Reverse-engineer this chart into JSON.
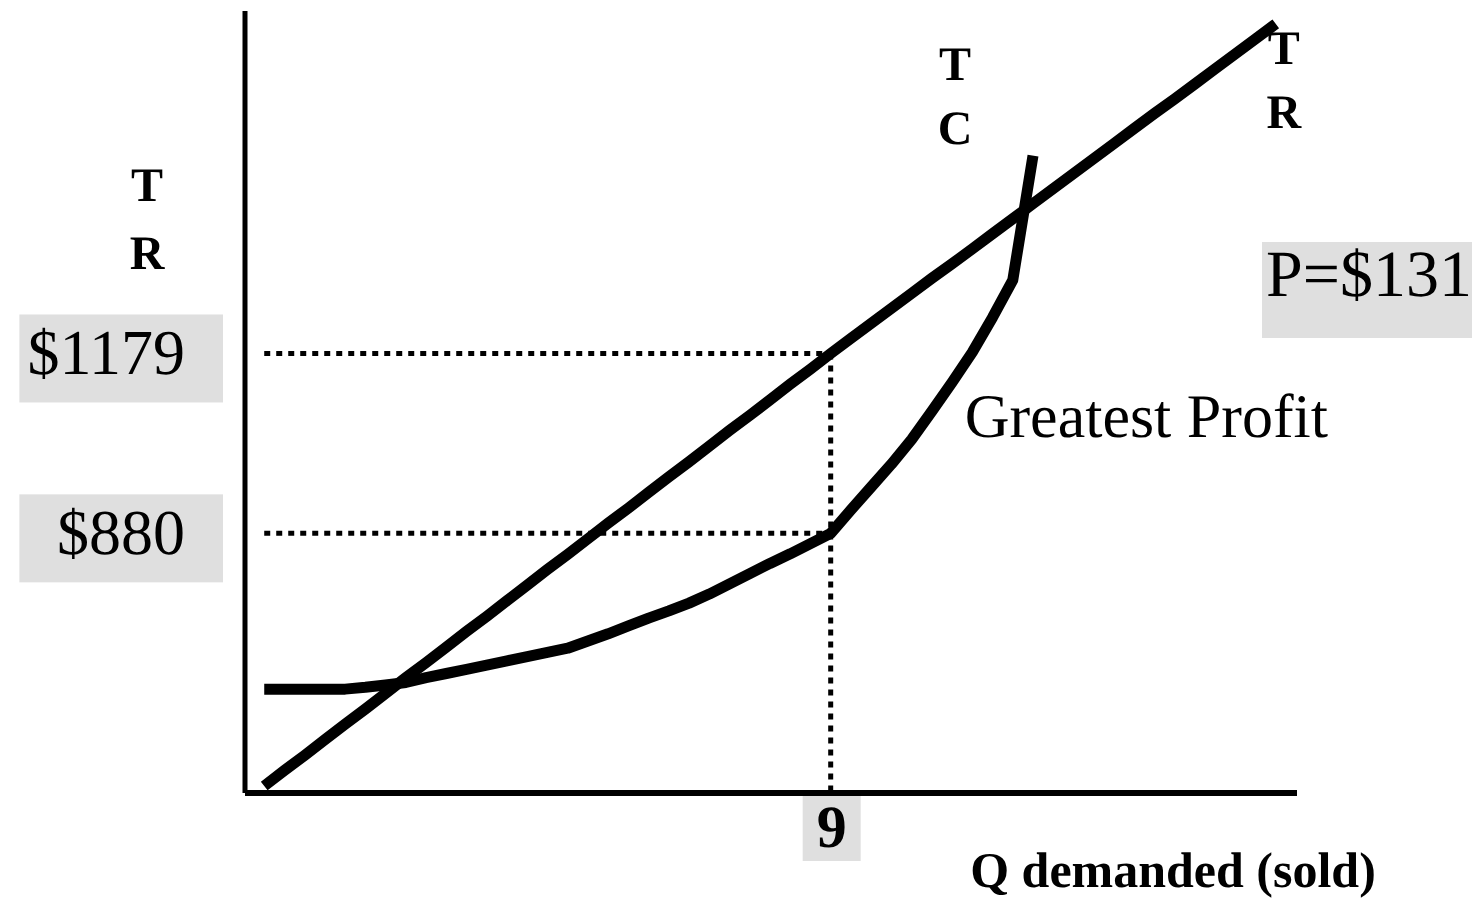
{
  "chart_data": {
    "type": "line",
    "xlabel": "Q demanded (sold)",
    "ylabel": "TR",
    "annotations": [
      {
        "text": "Greatest Profit",
        "x": "9",
        "y": 1070
      },
      "P=$131"
    ],
    "categories": [
      null,
      null,
      null,
      null,
      null,
      null,
      null,
      null,
      null,
      null,
      null,
      null,
      null,
      null,
      null,
      null,
      null,
      null,
      null,
      null,
      null,
      null,
      null,
      null,
      null,
      null,
      null,
      null,
      "9",
      null,
      null,
      null,
      null,
      null,
      null,
      null,
      null,
      null,
      null,
      null,
      null,
      null,
      null,
      null,
      null,
      null,
      null,
      null,
      null,
      null,
      null
    ],
    "ylim": [
      450,
      1750
    ],
    "yticks": [
      {
        "value": 880,
        "label": "$880"
      },
      {
        "value": 1179,
        "label": "$1179"
      }
    ],
    "grid": false,
    "legend": false,
    "marker": "none",
    "line_style": "solid",
    "series": [
      {
        "name": "TR",
        "color": "#000000",
        "values": [
          460,
          486,
          511,
          537,
          563,
          588,
          614,
          640,
          665,
          691,
          717,
          742,
          768,
          794,
          820,
          845,
          871,
          897,
          922,
          948,
          974,
          999,
          1025,
          1051,
          1076,
          1102,
          1128,
          1153,
          1179,
          1204,
          1229,
          1254,
          1279,
          1304,
          1328,
          1353,
          1378,
          1403,
          1428,
          1453,
          1478,
          1503,
          1528,
          1553,
          1578,
          1602,
          1627,
          1652,
          1677,
          1702,
          1727
        ]
      },
      {
        "name": "TC",
        "color": "#000000",
        "values": [
          621,
          621,
          621,
          621,
          621,
          624,
          628,
          632,
          640,
          647,
          654,
          661,
          668,
          675,
          682,
          689,
          701,
          713,
          726,
          739,
          751,
          764,
          779,
          796,
          813,
          830,
          846,
          863,
          880,
          919,
          957,
          995,
          1036,
          1083,
          1131,
          1181,
          1239,
          1301,
          1508,
          null,
          null,
          null,
          null,
          null,
          null,
          null,
          null,
          null,
          null,
          null,
          null
        ]
      },
      {
        "color": "#000000",
        "line_style": "dotted",
        "values": [
          1179,
          1179,
          1179,
          1179,
          1179,
          1179,
          1179,
          1179,
          1179,
          1179,
          1179,
          1179,
          1179,
          1179,
          1179,
          1179,
          1179,
          1179,
          1179,
          1179,
          1179,
          1179,
          1179,
          1179,
          1179,
          1179,
          1179,
          1179,
          1179,
          null,
          null,
          null,
          null,
          null,
          null,
          null,
          null,
          null,
          null,
          null,
          null,
          null,
          null,
          null,
          null,
          null,
          null,
          null,
          null,
          null,
          null
        ]
      },
      {
        "color": "#000000",
        "line_style": "dotted",
        "values": [
          880,
          880,
          880,
          880,
          880,
          880,
          880,
          880,
          880,
          880,
          880,
          880,
          880,
          880,
          880,
          880,
          880,
          880,
          880,
          880,
          880,
          880,
          880,
          880,
          880,
          880,
          880,
          880,
          880,
          null,
          null,
          null,
          null,
          null,
          null,
          null,
          null,
          null,
          null,
          null,
          null,
          null,
          null,
          null,
          null,
          null,
          null,
          null,
          null,
          null,
          null
        ]
      },
      {
        "color": "#000000",
        "line_style": "dotted",
        "x": [
          "9",
          "9"
        ],
        "values": [
          1179,
          450
        ]
      }
    ]
  }
}
